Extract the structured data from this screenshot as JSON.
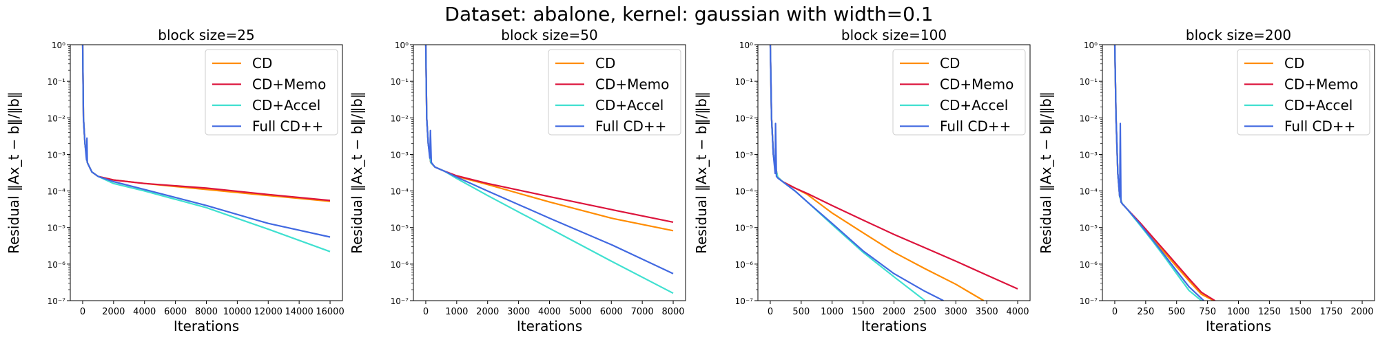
{
  "suptitle": "Dataset: abalone, kernel: gaussian with width=0.1",
  "colors": {
    "CD": "#ff8c00",
    "CD+Memo": "#dc143c",
    "CD+Accel": "#40e0d0",
    "Full CD++": "#4169e1"
  },
  "chart_data": [
    {
      "type": "line",
      "title": "block size=25",
      "xlabel": "Iterations",
      "ylabel": "Residual ‖Ax_t − b‖/‖b‖",
      "yscale": "log",
      "xlim": [
        -800,
        16800
      ],
      "ylim": [
        1e-07,
        1
      ],
      "xticks": [
        0,
        2000,
        4000,
        6000,
        8000,
        10000,
        12000,
        14000,
        16000
      ],
      "xtick_labels": [
        "0",
        "2000",
        "4000",
        "6000",
        "8000",
        "10000",
        "12000",
        "14000",
        "16000"
      ],
      "yticks": [
        1e-07,
        1e-06,
        1e-05,
        0.0001,
        0.001,
        0.01,
        0.1,
        1
      ],
      "ytick_labels": [
        "10⁻⁷",
        "10⁻⁶",
        "10⁻⁵",
        "10⁻⁴",
        "10⁻³",
        "10⁻²",
        "10⁻¹",
        "10⁰"
      ],
      "legend_position": "top-right",
      "series": [
        {
          "name": "CD",
          "x": [
            0,
            50,
            150,
            300,
            600,
            1000,
            2000,
            4000,
            8000,
            12000,
            16000
          ],
          "y": [
            1,
            0.01,
            0.002,
            0.0006,
            0.00033,
            0.00025,
            0.0002,
            0.00016,
            0.00011,
            7.5e-05,
            5.2e-05
          ]
        },
        {
          "name": "CD+Memo",
          "x": [
            0,
            50,
            150,
            300,
            600,
            1000,
            2000,
            4000,
            8000,
            12000,
            16000
          ],
          "y": [
            1,
            0.01,
            0.002,
            0.0006,
            0.00033,
            0.00025,
            0.0002,
            0.00016,
            0.00012,
            8e-05,
            5.5e-05
          ]
        },
        {
          "name": "CD+Accel",
          "x": [
            0,
            50,
            150,
            300,
            600,
            1000,
            2000,
            4000,
            8000,
            12000,
            16000
          ],
          "y": [
            1,
            0.01,
            0.002,
            0.0006,
            0.00033,
            0.00025,
            0.00016,
            0.0001,
            3.5e-05,
            9e-06,
            2.2e-06
          ]
        },
        {
          "name": "Full CD++",
          "x": [
            0,
            50,
            150,
            250,
            280,
            300,
            600,
            1000,
            2000,
            4000,
            8000,
            12000,
            16000
          ],
          "y": [
            1,
            0.01,
            0.002,
            0.0007,
            0.0028,
            0.0006,
            0.00033,
            0.00025,
            0.00018,
            0.00011,
            4e-05,
            1.3e-05,
            5.5e-06
          ]
        }
      ]
    },
    {
      "type": "line",
      "title": "block size=50",
      "xlabel": "Iterations",
      "ylabel": "Residual ‖Ax_t − b‖/‖b‖",
      "yscale": "log",
      "xlim": [
        -400,
        8400
      ],
      "ylim": [
        1e-07,
        1
      ],
      "xticks": [
        0,
        1000,
        2000,
        3000,
        4000,
        5000,
        6000,
        7000,
        8000
      ],
      "xtick_labels": [
        "0",
        "1000",
        "2000",
        "3000",
        "4000",
        "5000",
        "6000",
        "7000",
        "8000"
      ],
      "yticks": [
        1e-07,
        1e-06,
        1e-05,
        0.0001,
        0.001,
        0.01,
        0.1,
        1
      ],
      "ytick_labels": [
        "10⁻⁷",
        "10⁻⁶",
        "10⁻⁵",
        "10⁻⁴",
        "10⁻³",
        "10⁻²",
        "10⁻¹",
        "10⁰"
      ],
      "legend_position": "top-right",
      "series": [
        {
          "name": "CD",
          "x": [
            0,
            30,
            80,
            160,
            300,
            600,
            1000,
            2000,
            4000,
            6000,
            8000
          ],
          "y": [
            1,
            0.01,
            0.002,
            0.0006,
            0.00045,
            0.00035,
            0.00025,
            0.00015,
            5e-05,
            1.8e-05,
            8.2e-06
          ]
        },
        {
          "name": "CD+Memo",
          "x": [
            0,
            30,
            80,
            160,
            300,
            600,
            1000,
            2000,
            4000,
            6000,
            8000
          ],
          "y": [
            1,
            0.01,
            0.002,
            0.0006,
            0.00045,
            0.00035,
            0.00026,
            0.00016,
            7e-05,
            3.1e-05,
            1.4e-05
          ]
        },
        {
          "name": "CD+Accel",
          "x": [
            0,
            30,
            80,
            160,
            300,
            600,
            1000,
            2000,
            4000,
            6000,
            8000
          ],
          "y": [
            1,
            0.01,
            0.002,
            0.0006,
            0.00045,
            0.00035,
            0.00022,
            7.5e-05,
            9.5e-06,
            1.2e-06,
            1.6e-07
          ]
        },
        {
          "name": "Full CD++",
          "x": [
            0,
            30,
            80,
            130,
            150,
            180,
            300,
            600,
            1000,
            2000,
            4000,
            6000,
            8000
          ],
          "y": [
            1,
            0.01,
            0.002,
            0.0008,
            0.0045,
            0.0006,
            0.00045,
            0.00035,
            0.00024,
            0.0001,
            1.8e-05,
            3.4e-06,
            5.5e-07
          ]
        }
      ]
    },
    {
      "type": "line",
      "title": "block size=100",
      "xlabel": "Iterations",
      "ylabel": "Residual ‖Ax_t − b‖/‖b‖",
      "yscale": "log",
      "xlim": [
        -200,
        4200
      ],
      "ylim": [
        1e-07,
        1
      ],
      "xticks": [
        0,
        500,
        1000,
        1500,
        2000,
        2500,
        3000,
        3500,
        4000
      ],
      "xtick_labels": [
        "0",
        "500",
        "1000",
        "1500",
        "2000",
        "2500",
        "3000",
        "3500",
        "4000"
      ],
      "yticks": [
        1e-07,
        1e-06,
        1e-05,
        0.0001,
        0.001,
        0.01,
        0.1,
        1
      ],
      "ytick_labels": [
        "10⁻⁷",
        "10⁻⁶",
        "10⁻⁵",
        "10⁻⁴",
        "10⁻³",
        "10⁻²",
        "10⁻¹",
        "10⁰"
      ],
      "legend_position": "top-right",
      "series": [
        {
          "name": "CD",
          "x": [
            0,
            20,
            50,
            80,
            120,
            200,
            400,
            600,
            1000,
            1500,
            2000,
            2500,
            3000,
            3450
          ],
          "y": [
            1,
            0.01,
            0.001,
            0.0005,
            0.00024,
            0.00018,
            0.00012,
            8e-05,
            2.5e-05,
            7.2e-06,
            2.1e-06,
            7.5e-07,
            2.8e-07,
            1e-07
          ]
        },
        {
          "name": "CD+Memo",
          "x": [
            0,
            20,
            50,
            80,
            120,
            200,
            400,
            600,
            1000,
            1500,
            2000,
            2500,
            3000,
            3500,
            4000
          ],
          "y": [
            1,
            0.01,
            0.001,
            0.0005,
            0.00024,
            0.00018,
            0.00012,
            8.5e-05,
            4e-05,
            1.6e-05,
            6.5e-06,
            2.8e-06,
            1.2e-06,
            5e-07,
            2.1e-07
          ]
        },
        {
          "name": "CD+Accel",
          "x": [
            0,
            20,
            50,
            80,
            120,
            200,
            400,
            600,
            1000,
            1500,
            2000,
            2500
          ],
          "y": [
            1,
            0.01,
            0.001,
            0.0005,
            0.00024,
            0.00018,
            0.0001,
            5e-05,
            1.2e-05,
            2.1e-06,
            4.5e-07,
            1e-07
          ]
        },
        {
          "name": "Full CD++",
          "x": [
            0,
            20,
            50,
            80,
            85,
            100,
            130,
            200,
            400,
            600,
            1000,
            1500,
            2000,
            2500,
            2800
          ],
          "y": [
            1,
            0.01,
            0.001,
            0.0003,
            0.007,
            0.00025,
            0.00022,
            0.00018,
            0.0001,
            5e-05,
            1.3e-05,
            2.3e-06,
            5.5e-07,
            1.8e-07,
            1e-07
          ]
        }
      ]
    },
    {
      "type": "line",
      "title": "block size=200",
      "xlabel": "Iterations",
      "ylabel": "Residual ‖Ax_t − b‖/‖b‖",
      "yscale": "log",
      "xlim": [
        -100,
        2100
      ],
      "ylim": [
        1e-07,
        1
      ],
      "xticks": [
        0,
        250,
        500,
        750,
        1000,
        1250,
        1500,
        1750,
        2000
      ],
      "xtick_labels": [
        "0",
        "250",
        "500",
        "750",
        "1000",
        "1250",
        "1500",
        "1750",
        "2000"
      ],
      "yticks": [
        1e-07,
        1e-06,
        1e-05,
        0.0001,
        0.001,
        0.01,
        0.1,
        1
      ],
      "ytick_labels": [
        "10⁻⁷",
        "10⁻⁶",
        "10⁻⁵",
        "10⁻⁴",
        "10⁻³",
        "10⁻²",
        "10⁻¹",
        "10⁰"
      ],
      "legend_position": "top-right",
      "series": [
        {
          "name": "CD",
          "x": [
            0,
            10,
            25,
            40,
            60,
            100,
            200,
            300,
            400,
            500,
            600,
            700,
            800
          ],
          "y": [
            1,
            0.01,
            0.0003,
            7e-05,
            4.5e-05,
            3.2e-05,
            1.3e-05,
            5.2e-06,
            2.1e-06,
            8.5e-07,
            3.5e-07,
            1.5e-07,
            1e-07
          ]
        },
        {
          "name": "CD+Memo",
          "x": [
            0,
            10,
            25,
            40,
            60,
            100,
            200,
            300,
            400,
            500,
            600,
            700,
            810
          ],
          "y": [
            1,
            0.01,
            0.0003,
            7e-05,
            4.5e-05,
            3.2e-05,
            1.4e-05,
            5.8e-06,
            2.4e-06,
            9.8e-07,
            4e-07,
            1.7e-07,
            1e-07
          ]
        },
        {
          "name": "CD+Accel",
          "x": [
            0,
            10,
            25,
            40,
            60,
            100,
            200,
            300,
            400,
            500,
            600,
            700
          ],
          "y": [
            1,
            0.01,
            0.0003,
            7e-05,
            4.5e-05,
            3.2e-05,
            1.2e-05,
            4.5e-06,
            1.6e-06,
            5.5e-07,
            1.9e-07,
            1e-07
          ]
        },
        {
          "name": "Full CD++",
          "x": [
            0,
            10,
            25,
            40,
            45,
            50,
            60,
            100,
            200,
            300,
            400,
            500,
            600,
            720
          ],
          "y": [
            1,
            0.01,
            0.0003,
            7e-05,
            0.007,
            5e-05,
            4.5e-05,
            3.2e-05,
            1.3e-05,
            4.9e-06,
            1.8e-06,
            6.5e-07,
            2.4e-07,
            1e-07
          ]
        }
      ]
    }
  ]
}
